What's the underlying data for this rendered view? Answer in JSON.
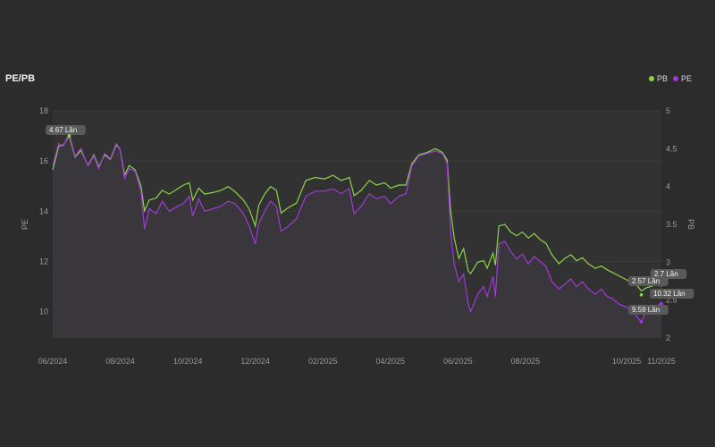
{
  "header": {
    "title": "PE/PB"
  },
  "legend": [
    {
      "name": "PB",
      "color": "#8bd44a"
    },
    {
      "name": "PE",
      "color": "#a03ad6"
    }
  ],
  "chart_data": {
    "type": "line",
    "title": "PE/PB",
    "x_ticks": [
      "06/2024",
      "08/2024",
      "10/2024",
      "12/2024",
      "02/2025",
      "04/2025",
      "06/2025",
      "08/2025",
      "10/2025",
      "11/2025"
    ],
    "y_left": {
      "label": "PE",
      "ticks": [
        10,
        12,
        14,
        16,
        18
      ],
      "range": [
        8.95,
        18
      ]
    },
    "y_right": {
      "label": "PB",
      "ticks": [
        2,
        2.5,
        3,
        3.5,
        4,
        4.5,
        5
      ],
      "range": [
        2,
        5
      ]
    },
    "grid": true,
    "legend_position": "top-right",
    "x_range": [
      "2024-06-01",
      "2025-10-31"
    ],
    "series": [
      {
        "name": "PE",
        "axis": "left",
        "color": "#a03ad6",
        "points": [
          [
            "2024-06-01",
            15.8
          ],
          [
            "2024-06-06",
            16.7
          ],
          [
            "2024-06-10",
            16.6
          ],
          [
            "2024-06-15",
            17.1
          ],
          [
            "2024-06-20",
            16.2
          ],
          [
            "2024-06-25",
            16.5
          ],
          [
            "2024-07-01",
            15.8
          ],
          [
            "2024-07-06",
            16.2
          ],
          [
            "2024-07-10",
            15.7
          ],
          [
            "2024-07-15",
            16.3
          ],
          [
            "2024-07-20",
            16.1
          ],
          [
            "2024-07-25",
            16.7
          ],
          [
            "2024-07-28",
            16.5
          ],
          [
            "2024-08-01",
            15.3
          ],
          [
            "2024-08-05",
            15.7
          ],
          [
            "2024-08-10",
            15.6
          ],
          [
            "2024-08-15",
            14.8
          ],
          [
            "2024-08-18",
            13.3
          ],
          [
            "2024-08-22",
            14.1
          ],
          [
            "2024-08-28",
            13.9
          ],
          [
            "2024-09-02",
            14.4
          ],
          [
            "2024-09-08",
            14.0
          ],
          [
            "2024-09-15",
            14.2
          ],
          [
            "2024-09-20",
            14.3
          ],
          [
            "2024-09-25",
            14.6
          ],
          [
            "2024-09-28",
            13.8
          ],
          [
            "2024-10-03",
            14.5
          ],
          [
            "2024-10-08",
            14.0
          ],
          [
            "2024-10-15",
            14.1
          ],
          [
            "2024-10-22",
            14.2
          ],
          [
            "2024-10-28",
            14.4
          ],
          [
            "2024-11-03",
            14.3
          ],
          [
            "2024-11-10",
            13.9
          ],
          [
            "2024-11-15",
            13.4
          ],
          [
            "2024-11-20",
            12.7
          ],
          [
            "2024-11-23",
            13.5
          ],
          [
            "2024-11-28",
            14.0
          ],
          [
            "2024-12-03",
            14.4
          ],
          [
            "2024-12-08",
            14.2
          ],
          [
            "2024-12-12",
            13.2
          ],
          [
            "2024-12-18",
            13.4
          ],
          [
            "2024-12-25",
            13.7
          ],
          [
            "2025-01-02",
            14.6
          ],
          [
            "2025-01-10",
            14.8
          ],
          [
            "2025-01-18",
            14.8
          ],
          [
            "2025-01-25",
            14.9
          ],
          [
            "2025-02-01",
            14.7
          ],
          [
            "2025-02-08",
            14.9
          ],
          [
            "2025-02-12",
            13.9
          ],
          [
            "2025-02-18",
            14.2
          ],
          [
            "2025-02-25",
            14.7
          ],
          [
            "2025-03-03",
            14.5
          ],
          [
            "2025-03-10",
            14.6
          ],
          [
            "2025-03-15",
            14.3
          ],
          [
            "2025-03-22",
            14.6
          ],
          [
            "2025-03-28",
            14.7
          ],
          [
            "2025-04-02",
            15.8
          ],
          [
            "2025-04-08",
            16.2
          ],
          [
            "2025-04-15",
            16.3
          ],
          [
            "2025-04-22",
            16.4
          ],
          [
            "2025-04-28",
            16.3
          ],
          [
            "2025-05-02",
            15.9
          ],
          [
            "2025-05-05",
            13.2
          ],
          [
            "2025-05-08",
            11.9
          ],
          [
            "2025-05-12",
            11.2
          ],
          [
            "2025-05-16",
            11.5
          ],
          [
            "2025-05-20",
            10.3
          ],
          [
            "2025-05-22",
            10.0
          ],
          [
            "2025-05-28",
            10.7
          ],
          [
            "2025-06-02",
            11.0
          ],
          [
            "2025-06-05",
            10.6
          ],
          [
            "2025-06-10",
            11.4
          ],
          [
            "2025-06-12",
            10.6
          ],
          [
            "2025-06-15",
            12.7
          ],
          [
            "2025-06-20",
            12.8
          ],
          [
            "2025-06-25",
            12.4
          ],
          [
            "2025-06-30",
            12.1
          ],
          [
            "2025-07-05",
            12.3
          ],
          [
            "2025-07-10",
            11.9
          ],
          [
            "2025-07-15",
            12.2
          ],
          [
            "2025-07-20",
            12.0
          ],
          [
            "2025-07-25",
            11.8
          ],
          [
            "2025-07-30",
            11.2
          ],
          [
            "2025-08-05",
            10.9
          ],
          [
            "2025-08-10",
            11.1
          ],
          [
            "2025-08-15",
            11.3
          ],
          [
            "2025-08-20",
            11.0
          ],
          [
            "2025-08-25",
            11.2
          ],
          [
            "2025-08-30",
            10.9
          ],
          [
            "2025-09-05",
            10.7
          ],
          [
            "2025-09-10",
            10.9
          ],
          [
            "2025-09-15",
            10.6
          ],
          [
            "2025-09-20",
            10.5
          ],
          [
            "2025-09-25",
            10.3
          ],
          [
            "2025-09-30",
            10.2
          ],
          [
            "2025-10-05",
            10.1
          ],
          [
            "2025-10-10",
            9.8
          ],
          [
            "2025-10-14",
            9.6
          ],
          [
            "2025-10-18",
            10.0
          ],
          [
            "2025-10-22",
            10.1
          ],
          [
            "2025-10-26",
            10.2
          ],
          [
            "2025-10-31",
            10.32
          ]
        ]
      },
      {
        "name": "PB",
        "axis": "right",
        "color": "#8bd44a",
        "points": [
          [
            "2024-06-01",
            4.22
          ],
          [
            "2024-06-06",
            4.53
          ],
          [
            "2024-06-10",
            4.55
          ],
          [
            "2024-06-15",
            4.67
          ],
          [
            "2024-06-20",
            4.39
          ],
          [
            "2024-06-25",
            4.48
          ],
          [
            "2024-07-01",
            4.28
          ],
          [
            "2024-07-06",
            4.42
          ],
          [
            "2024-07-10",
            4.26
          ],
          [
            "2024-07-15",
            4.42
          ],
          [
            "2024-07-20",
            4.36
          ],
          [
            "2024-07-25",
            4.55
          ],
          [
            "2024-07-28",
            4.5
          ],
          [
            "2024-08-01",
            4.15
          ],
          [
            "2024-08-05",
            4.28
          ],
          [
            "2024-08-10",
            4.22
          ],
          [
            "2024-08-15",
            4.0
          ],
          [
            "2024-08-18",
            3.68
          ],
          [
            "2024-08-22",
            3.82
          ],
          [
            "2024-08-28",
            3.85
          ],
          [
            "2024-09-02",
            3.95
          ],
          [
            "2024-09-08",
            3.9
          ],
          [
            "2024-09-15",
            3.97
          ],
          [
            "2024-09-20",
            4.02
          ],
          [
            "2024-09-25",
            4.05
          ],
          [
            "2024-09-28",
            3.82
          ],
          [
            "2024-10-03",
            3.98
          ],
          [
            "2024-10-08",
            3.9
          ],
          [
            "2024-10-15",
            3.92
          ],
          [
            "2024-10-22",
            3.95
          ],
          [
            "2024-10-28",
            4.0
          ],
          [
            "2024-11-03",
            3.93
          ],
          [
            "2024-11-10",
            3.82
          ],
          [
            "2024-11-15",
            3.7
          ],
          [
            "2024-11-20",
            3.48
          ],
          [
            "2024-11-23",
            3.75
          ],
          [
            "2024-11-28",
            3.9
          ],
          [
            "2024-12-03",
            4.0
          ],
          [
            "2024-12-08",
            3.95
          ],
          [
            "2024-12-12",
            3.65
          ],
          [
            "2024-12-18",
            3.72
          ],
          [
            "2024-12-25",
            3.78
          ],
          [
            "2025-01-02",
            4.08
          ],
          [
            "2025-01-10",
            4.12
          ],
          [
            "2025-01-18",
            4.1
          ],
          [
            "2025-01-25",
            4.15
          ],
          [
            "2025-02-01",
            4.08
          ],
          [
            "2025-02-08",
            4.12
          ],
          [
            "2025-02-12",
            3.88
          ],
          [
            "2025-02-18",
            3.95
          ],
          [
            "2025-02-25",
            4.08
          ],
          [
            "2025-03-03",
            4.02
          ],
          [
            "2025-03-10",
            4.05
          ],
          [
            "2025-03-15",
            3.98
          ],
          [
            "2025-03-22",
            4.02
          ],
          [
            "2025-03-28",
            4.02
          ],
          [
            "2025-04-02",
            4.3
          ],
          [
            "2025-04-08",
            4.42
          ],
          [
            "2025-04-15",
            4.45
          ],
          [
            "2025-04-22",
            4.5
          ],
          [
            "2025-04-28",
            4.45
          ],
          [
            "2025-05-02",
            4.35
          ],
          [
            "2025-05-05",
            3.68
          ],
          [
            "2025-05-08",
            3.32
          ],
          [
            "2025-05-12",
            3.05
          ],
          [
            "2025-05-16",
            3.18
          ],
          [
            "2025-05-20",
            2.88
          ],
          [
            "2025-05-22",
            2.85
          ],
          [
            "2025-05-28",
            3.0
          ],
          [
            "2025-06-02",
            3.02
          ],
          [
            "2025-06-05",
            2.92
          ],
          [
            "2025-06-10",
            3.12
          ],
          [
            "2025-06-12",
            2.96
          ],
          [
            "2025-06-15",
            3.48
          ],
          [
            "2025-06-20",
            3.5
          ],
          [
            "2025-06-25",
            3.4
          ],
          [
            "2025-06-30",
            3.35
          ],
          [
            "2025-07-05",
            3.4
          ],
          [
            "2025-07-10",
            3.32
          ],
          [
            "2025-07-15",
            3.38
          ],
          [
            "2025-07-20",
            3.3
          ],
          [
            "2025-07-25",
            3.25
          ],
          [
            "2025-07-30",
            3.1
          ],
          [
            "2025-08-05",
            2.98
          ],
          [
            "2025-08-10",
            3.05
          ],
          [
            "2025-08-15",
            3.1
          ],
          [
            "2025-08-20",
            3.02
          ],
          [
            "2025-08-25",
            3.06
          ],
          [
            "2025-08-30",
            2.98
          ],
          [
            "2025-09-05",
            2.92
          ],
          [
            "2025-09-10",
            2.95
          ],
          [
            "2025-09-15",
            2.9
          ],
          [
            "2025-09-20",
            2.86
          ],
          [
            "2025-09-25",
            2.82
          ],
          [
            "2025-09-30",
            2.78
          ],
          [
            "2025-10-05",
            2.74
          ],
          [
            "2025-10-10",
            2.7
          ],
          [
            "2025-10-14",
            2.62
          ],
          [
            "2025-10-18",
            2.66
          ],
          [
            "2025-10-22",
            2.68
          ],
          [
            "2025-10-26",
            2.7
          ],
          [
            "2025-10-31",
            2.7
          ]
        ]
      }
    ],
    "annotations": [
      {
        "text": "4.67 Lần",
        "series": "PB",
        "date": "2024-06-15",
        "value": 4.67
      },
      {
        "text": "2.7 Lần",
        "series": "PB",
        "date": "2025-10-31",
        "value": 2.7
      },
      {
        "text": "2.57 Lần",
        "series": "PB",
        "date": "2025-10-14",
        "value": 2.57
      },
      {
        "text": "10.32 Lần",
        "series": "PE",
        "date": "2025-10-31",
        "value": 10.32
      },
      {
        "text": "9.59 Lần",
        "series": "PE",
        "date": "2025-10-14",
        "value": 9.59
      }
    ]
  }
}
